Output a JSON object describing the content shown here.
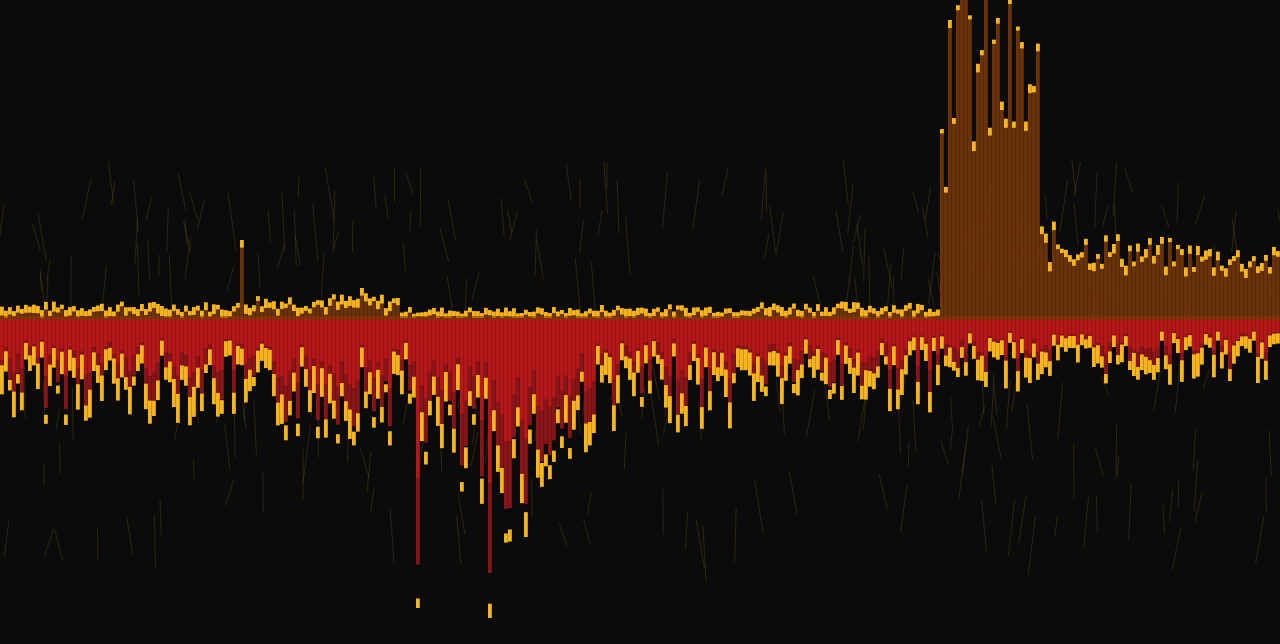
{
  "colors": {
    "background": "#0b0b0b",
    "tip": "#f5b51c",
    "upper_body": "#7a3a08",
    "lower_body": "#c8171a",
    "lower_mid": "#a8161a",
    "streak": "#6b5a10"
  },
  "chart_data": {
    "type": "bar",
    "title": "",
    "xlabel": "",
    "ylabel": "",
    "bar_count": 320,
    "ylim": [
      -300,
      300
    ],
    "grid": false,
    "legend": "none",
    "series": [
      {
        "segments": [
          {
            "from": 0,
            "to": 60,
            "up": 12,
            "down": 80
          },
          {
            "from": 60,
            "to": 100,
            "up": 18,
            "down": 95
          },
          {
            "from": 100,
            "to": 150,
            "up": 8,
            "down": 150
          },
          {
            "from": 150,
            "to": 185,
            "up": 10,
            "down": 85
          },
          {
            "from": 185,
            "to": 235,
            "up": 12,
            "down": 70
          },
          {
            "from": 235,
            "to": 260,
            "up": 180,
            "down": 55
          },
          {
            "from": 260,
            "to": 320,
            "up": 45,
            "down": 50
          }
        ],
        "peaks": [
          {
            "bar": 60,
            "up": 78
          },
          {
            "bar": 90,
            "up": 30
          },
          {
            "bar": 104,
            "down": 290
          },
          {
            "bar": 122,
            "down": 300
          },
          {
            "bar": 237,
            "up": 298
          },
          {
            "bar": 238,
            "up": 200
          }
        ]
      }
    ]
  }
}
